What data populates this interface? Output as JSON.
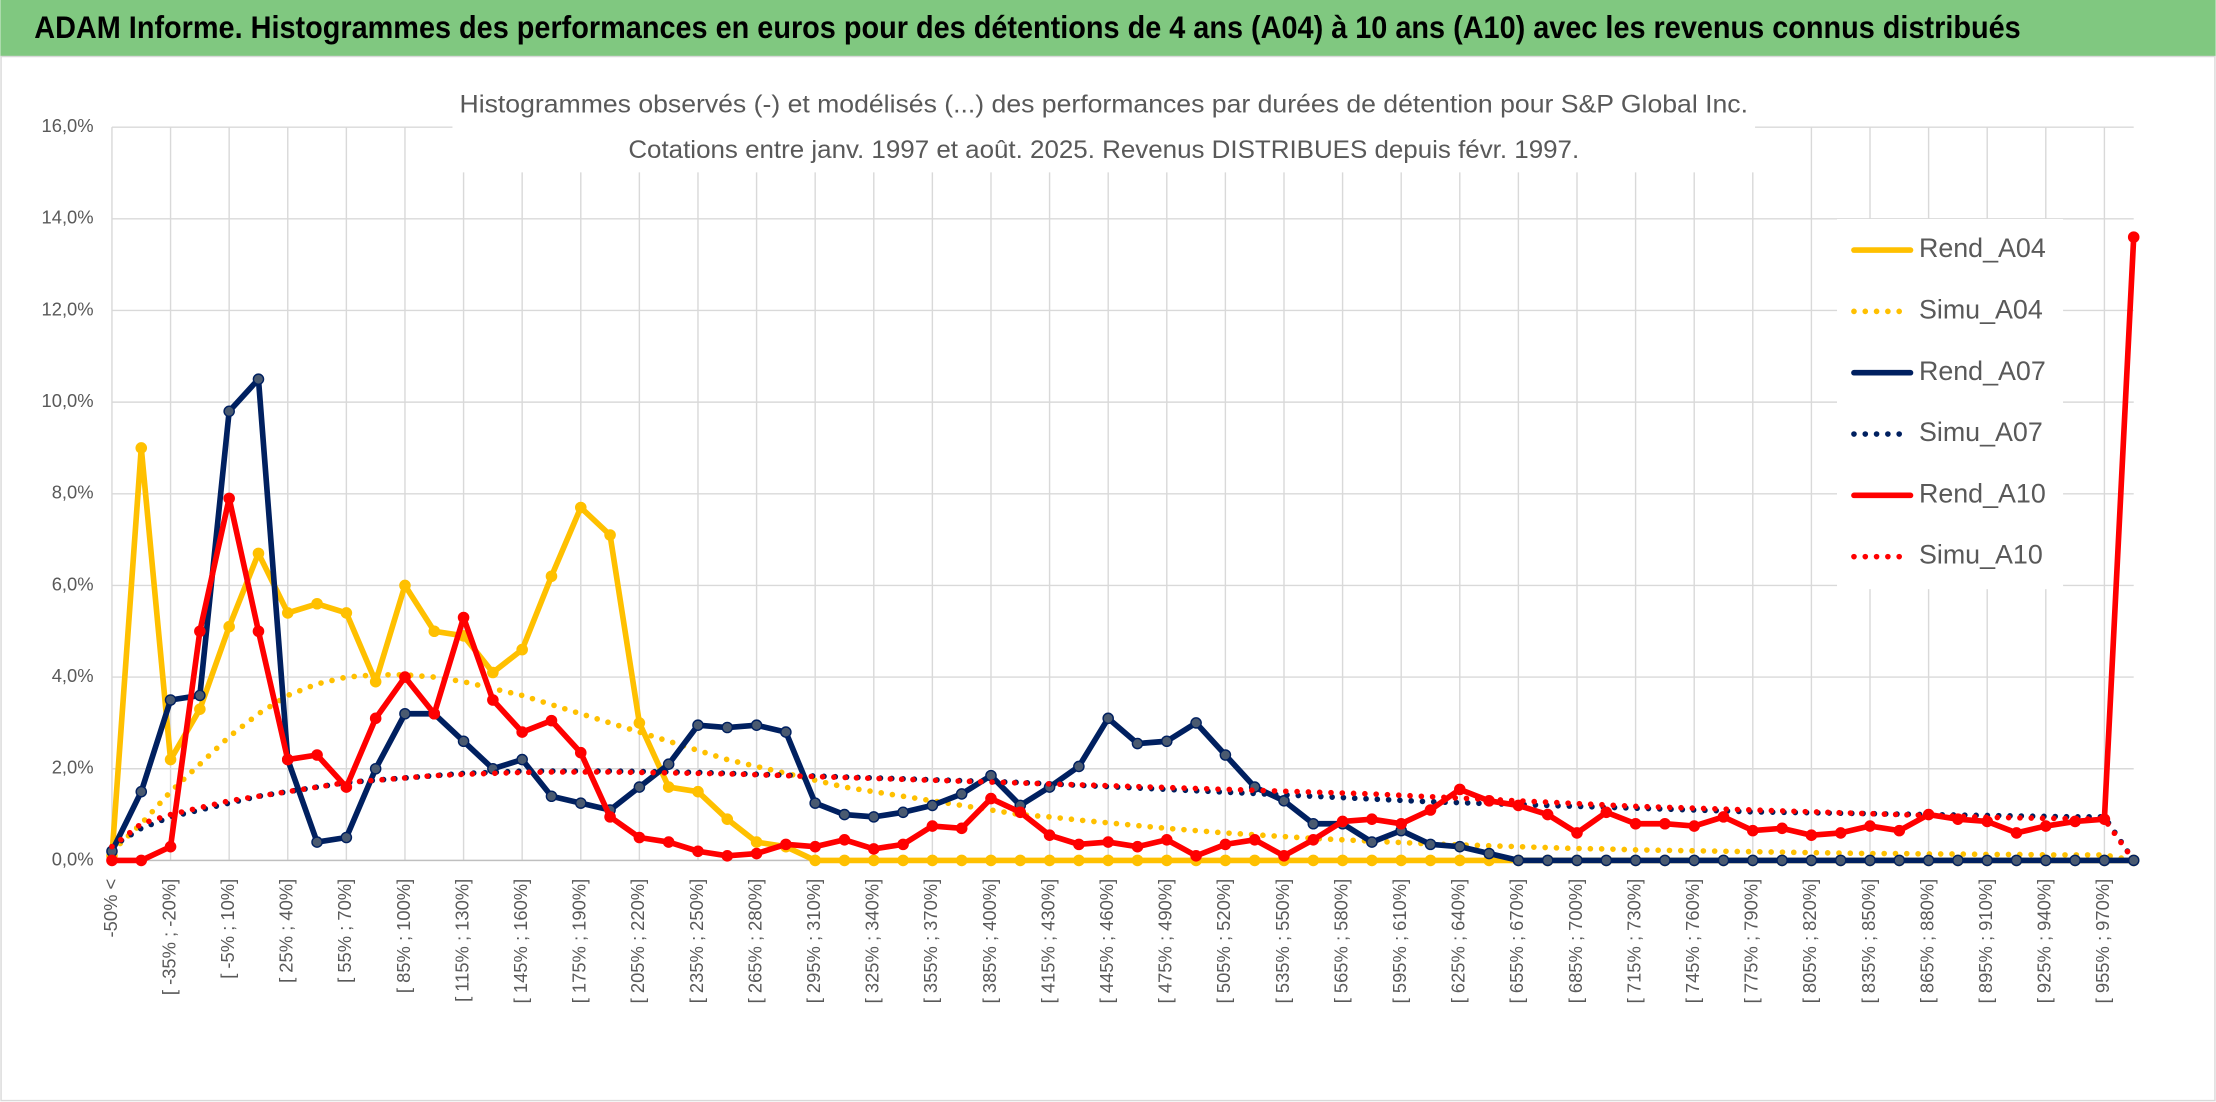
{
  "header": {
    "title": "ADAM Informe. Histogrammes des performances en euros pour des détentions de 4 ans (A04) à 10 ans (A10) avec les revenus connus distribués"
  },
  "chart_data": {
    "type": "line",
    "title": "Histogrammes observés (-) et modélisés (...) des performances par durées de détention pour S&P Global Inc.",
    "subtitle": "Cotations entre janv. 1997 et août. 2025. Revenus DISTRIBUES depuis févr. 1997.",
    "categories": [
      "-50% <",
      null,
      "[ -35% ; -20%]",
      null,
      "[ -5% ; 10%]",
      null,
      "[ 25% ; 40%]",
      null,
      "[ 55% ; 70%]",
      null,
      "[ 85% ; 100%]",
      null,
      "[ 115% ; 130%]",
      null,
      "[ 145% ; 160%]",
      null,
      "[ 175% ; 190%]",
      null,
      "[ 205% ; 220%]",
      null,
      "[ 235% ; 250%]",
      null,
      "[ 265% ; 280%]",
      null,
      "[ 295% ; 310%]",
      null,
      "[ 325% ; 340%]",
      null,
      "[ 355% ; 370%]",
      null,
      "[ 385% ; 400%]",
      null,
      "[ 415% ; 430%]",
      null,
      "[ 445% ; 460%]",
      null,
      "[ 475% ; 490%]",
      null,
      "[ 505% ; 520%]",
      null,
      "[ 535% ; 550%]",
      null,
      "[ 565% ; 580%]",
      null,
      "[ 595% ; 610%]",
      null,
      "[ 625% ; 640%]",
      null,
      "[ 655% ; 670%]",
      null,
      "[ 685% ; 700%]",
      null,
      "[ 715% ; 730%]",
      null,
      "[ 745% ; 760%]",
      null,
      "[ 775% ; 790%]",
      null,
      "[ 805% ; 820%]",
      null,
      "[ 835% ; 850%]",
      null,
      "[ 865% ; 880%]",
      null,
      "[ 895% ; 910%]",
      null,
      "[ 925% ; 940%]",
      null,
      "[ 955% ; 970%]",
      null
    ],
    "series": [
      {
        "name": "Rend_A04",
        "color": "#ffc000",
        "style": "solid",
        "values": [
          0.1,
          9.0,
          2.2,
          3.3,
          5.1,
          6.7,
          5.4,
          5.6,
          5.4,
          3.9,
          6.0,
          5.0,
          4.9,
          4.1,
          4.6,
          6.2,
          7.7,
          7.1,
          3.0,
          1.6,
          1.5,
          0.9,
          0.4,
          0.3,
          0,
          0,
          0,
          0,
          0,
          0,
          0,
          0,
          0,
          0,
          0,
          0,
          0,
          0,
          0,
          0,
          0,
          0,
          0,
          0,
          0,
          0,
          0,
          0,
          0,
          0,
          0,
          0,
          0,
          0,
          0,
          0,
          0,
          0,
          0,
          0,
          0,
          0,
          0,
          0,
          0,
          0,
          0,
          0,
          0,
          0
        ]
      },
      {
        "name": "Simu_A04",
        "color": "#ffc000",
        "style": "dotted",
        "values": [
          0.2,
          0.8,
          1.5,
          2.1,
          2.7,
          3.2,
          3.6,
          3.85,
          4.0,
          4.05,
          4.05,
          4.0,
          3.9,
          3.75,
          3.6,
          3.4,
          3.2,
          3.0,
          2.8,
          2.6,
          2.4,
          2.2,
          2.05,
          1.9,
          1.75,
          1.6,
          1.5,
          1.4,
          1.3,
          1.2,
          1.1,
          1.0,
          0.95,
          0.88,
          0.82,
          0.76,
          0.7,
          0.65,
          0.6,
          0.56,
          0.52,
          0.48,
          0.45,
          0.42,
          0.39,
          0.36,
          0.34,
          0.32,
          0.3,
          0.28,
          0.26,
          0.25,
          0.23,
          0.22,
          0.21,
          0.2,
          0.19,
          0.18,
          0.17,
          0.16,
          0.15,
          0.15,
          0.14,
          0.14,
          0.13,
          0.13,
          0.12,
          0.12,
          0.12,
          0.0
        ]
      },
      {
        "name": "Rend_A07",
        "color": "#002060",
        "style": "solid",
        "values": [
          0.2,
          1.5,
          3.5,
          3.6,
          9.8,
          10.5,
          2.2,
          0.4,
          0.5,
          2.0,
          3.2,
          3.2,
          2.6,
          2.0,
          2.2,
          1.4,
          1.25,
          1.1,
          1.6,
          2.1,
          2.95,
          2.9,
          2.95,
          2.8,
          1.25,
          1.0,
          0.95,
          1.05,
          1.2,
          1.45,
          1.85,
          1.2,
          1.6,
          2.05,
          3.1,
          2.55,
          2.6,
          3.0,
          2.3,
          1.6,
          1.3,
          0.8,
          0.8,
          0.4,
          0.65,
          0.35,
          0.3,
          0.15,
          0,
          0,
          0,
          0,
          0,
          0,
          0,
          0,
          0,
          0,
          0,
          0,
          0,
          0,
          0,
          0,
          0,
          0,
          0,
          0,
          0,
          0
        ]
      },
      {
        "name": "Simu_A07",
        "color": "#002060",
        "style": "dotted",
        "values": [
          0.3,
          0.7,
          0.95,
          1.1,
          1.25,
          1.4,
          1.5,
          1.6,
          1.7,
          1.75,
          1.8,
          1.85,
          1.9,
          1.92,
          1.95,
          1.95,
          1.95,
          1.95,
          1.94,
          1.93,
          1.92,
          1.9,
          1.88,
          1.86,
          1.84,
          1.82,
          1.8,
          1.78,
          1.76,
          1.74,
          1.72,
          1.7,
          1.67,
          1.64,
          1.61,
          1.58,
          1.55,
          1.52,
          1.49,
          1.46,
          1.43,
          1.4,
          1.37,
          1.34,
          1.31,
          1.28,
          1.26,
          1.24,
          1.22,
          1.2,
          1.18,
          1.16,
          1.14,
          1.12,
          1.1,
          1.08,
          1.06,
          1.05,
          1.04,
          1.03,
          1.02,
          1.01,
          1.0,
          0.99,
          0.98,
          0.97,
          0.96,
          0.95,
          0.95,
          0.0
        ]
      },
      {
        "name": "Rend_A10",
        "color": "#ff0000",
        "style": "solid",
        "values": [
          0,
          0,
          0.3,
          5.0,
          7.9,
          5.0,
          2.2,
          2.3,
          1.6,
          3.1,
          4.0,
          3.2,
          5.3,
          3.5,
          2.8,
          3.05,
          2.35,
          0.95,
          0.5,
          0.4,
          0.2,
          0.1,
          0.15,
          0.35,
          0.3,
          0.45,
          0.25,
          0.35,
          0.75,
          0.7,
          1.35,
          1.05,
          0.55,
          0.35,
          0.4,
          0.3,
          0.45,
          0.1,
          0.35,
          0.45,
          0.1,
          0.45,
          0.85,
          0.9,
          0.8,
          1.1,
          1.55,
          1.3,
          1.2,
          1.0,
          0.6,
          1.05,
          0.8,
          0.8,
          0.75,
          0.95,
          0.65,
          0.7,
          0.55,
          0.6,
          0.75,
          0.65,
          1.0,
          0.9,
          0.85,
          0.6,
          0.75,
          0.85,
          0.9,
          13.6
        ]
      },
      {
        "name": "Simu_A10",
        "color": "#ff0000",
        "style": "dotted",
        "values": [
          0.3,
          0.8,
          1.0,
          1.15,
          1.3,
          1.4,
          1.5,
          1.6,
          1.7,
          1.75,
          1.8,
          1.85,
          1.88,
          1.9,
          1.92,
          1.93,
          1.93,
          1.93,
          1.92,
          1.91,
          1.9,
          1.89,
          1.87,
          1.85,
          1.83,
          1.81,
          1.79,
          1.77,
          1.75,
          1.73,
          1.71,
          1.69,
          1.67,
          1.65,
          1.63,
          1.61,
          1.59,
          1.57,
          1.55,
          1.53,
          1.51,
          1.49,
          1.47,
          1.45,
          1.42,
          1.39,
          1.36,
          1.33,
          1.3,
          1.27,
          1.24,
          1.21,
          1.18,
          1.16,
          1.14,
          1.12,
          1.1,
          1.08,
          1.06,
          1.04,
          1.02,
          1.0,
          0.98,
          0.96,
          0.94,
          0.93,
          0.92,
          0.91,
          0.9,
          0.0
        ]
      }
    ],
    "ylim": [
      0,
      16
    ],
    "yticks": [
      {
        "value": 0,
        "label": "0,0%"
      },
      {
        "value": 2,
        "label": "2,0%"
      },
      {
        "value": 4,
        "label": "4,0%"
      },
      {
        "value": 6,
        "label": "6,0%"
      },
      {
        "value": 8,
        "label": "8,0%"
      },
      {
        "value": 10,
        "label": "10,0%"
      },
      {
        "value": 12,
        "label": "12,0%"
      },
      {
        "value": 14,
        "label": "14,0%"
      },
      {
        "value": 16,
        "label": "16,0%"
      }
    ],
    "grid": true,
    "legend": "right"
  }
}
